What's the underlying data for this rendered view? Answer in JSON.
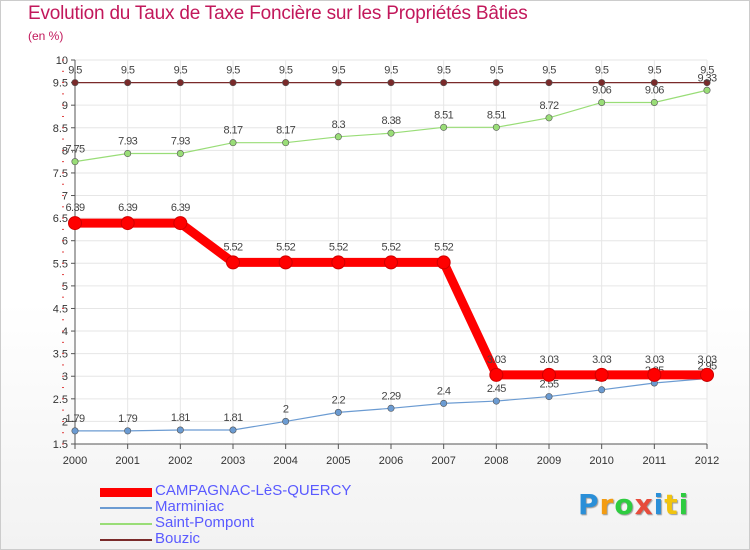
{
  "header": {
    "title": "Evolution du Taux de Taxe Foncière sur les Propriétés Bâties",
    "unit": "(en %)"
  },
  "chart_data": {
    "type": "line",
    "title": "Evolution du Taux de Taxe Foncière sur les Propriétés Bâties",
    "ylabel": "(en %)",
    "xlabel": "",
    "x": [
      "2000",
      "2001",
      "2002",
      "2003",
      "2004",
      "2005",
      "2006",
      "2007",
      "2008",
      "2009",
      "2010",
      "2011",
      "2012"
    ],
    "ylim": [
      1.5,
      10
    ],
    "yticks": [
      "1.5",
      "2",
      "2.5",
      "3",
      "3.5",
      "4",
      "4.5",
      "5",
      "5.5",
      "6",
      "6.5",
      "7",
      "7.5",
      "8",
      "8.5",
      "9",
      "9.5",
      "10"
    ],
    "grid": true,
    "legend_position": "bottom-left",
    "series": [
      {
        "name": "CAMPAGNAC-LèS-QUERCY",
        "color": "#ff0000",
        "values": [
          6.39,
          6.39,
          6.39,
          5.52,
          5.52,
          5.52,
          5.52,
          5.52,
          3.03,
          3.03,
          3.03,
          3.03,
          3.03
        ],
        "labels": [
          "6.39",
          "6.39",
          "6.39",
          "5.52",
          "5.52",
          "5.52",
          "5.52",
          "5.52",
          "3.03",
          "3.03",
          "3.03",
          "3.03",
          "3.03"
        ]
      },
      {
        "name": "Marminiac",
        "color": "#6b9bd2",
        "values": [
          1.79,
          1.79,
          1.81,
          1.81,
          2,
          2.2,
          2.29,
          2.4,
          2.45,
          2.55,
          2.7,
          2.85,
          2.95
        ],
        "labels": [
          "1.79",
          "1.79",
          "1.81",
          "1.81",
          "2",
          "2.2",
          "2.29",
          "2.4",
          "2.45",
          "2.55",
          "2.7",
          "2.85",
          "2.95"
        ]
      },
      {
        "name": "Saint-Pompont",
        "color": "#99dd77",
        "values": [
          7.75,
          7.93,
          7.93,
          8.17,
          8.17,
          8.3,
          8.38,
          8.51,
          8.51,
          8.72,
          9.06,
          9.06,
          9.33
        ],
        "labels": [
          "7.75",
          "7.93",
          "7.93",
          "8.17",
          "8.17",
          "8.3",
          "8.38",
          "8.51",
          "8.51",
          "8.72",
          "9.06",
          "9.06",
          "9.33"
        ]
      },
      {
        "name": "Bouzic",
        "color": "#7a2a2a",
        "values": [
          9.5,
          9.5,
          9.5,
          9.5,
          9.5,
          9.5,
          9.5,
          9.5,
          9.5,
          9.5,
          9.5,
          9.5,
          9.5
        ],
        "labels": [
          "9.5",
          "9.5",
          "9.5",
          "9.5",
          "9.5",
          "9.5",
          "9.5",
          "9.5",
          "9.5",
          "9.5",
          "9.5",
          "9.5",
          "9.5"
        ]
      }
    ]
  },
  "brand": {
    "letters": [
      "P",
      "r",
      "o",
      "x",
      "i",
      "t",
      "i"
    ],
    "colors": [
      "#2a8fd8",
      "#f39c12",
      "#2ecc40",
      "#e74c3c",
      "#2a8fd8",
      "#f1c40f",
      "#2ecc40"
    ]
  }
}
